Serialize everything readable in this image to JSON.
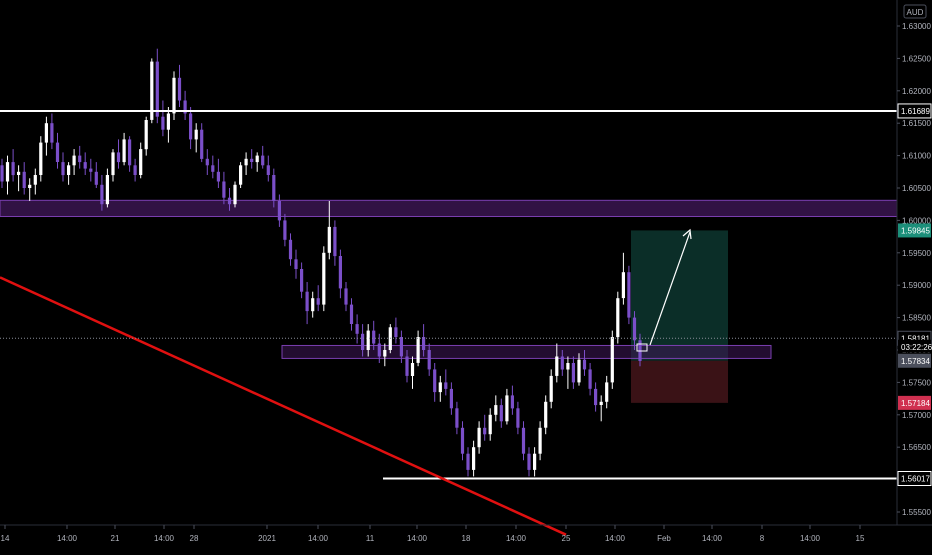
{
  "currency_label": "AUD",
  "colors": {
    "background": "#000000",
    "bull_candle": "#ffffff",
    "bear_candle": "#7b4fc9",
    "zone_fill": "#3a1550",
    "zone_stroke": "#7a3fb0",
    "trendline": "#e01010",
    "level_line": "#ffffff",
    "profit_fill": "#0b2e28",
    "loss_fill": "#3a1216",
    "target_badge": "#1c8f7a",
    "stop_badge": "#d03050",
    "current_badge": "#4b4f5c",
    "axis_text": "#b2b5be"
  },
  "chart_data": {
    "type": "candlestick",
    "title": "",
    "xlabel": "",
    "ylabel": "",
    "ylim": [
      1.5525,
      1.6325
    ],
    "grid": false,
    "y_ticks": [
      "1.63000",
      "1.62500",
      "1.62000",
      "1.61500",
      "1.61000",
      "1.60500",
      "1.60000",
      "1.59500",
      "1.59000",
      "1.58500",
      "1.58000",
      "1.57500",
      "1.57000",
      "1.56500",
      "1.56000",
      "1.55500"
    ],
    "x_ticks": [
      "14",
      "14:00",
      "21",
      "14:00",
      "28",
      "2021",
      "14:00",
      "11",
      "14:00",
      "18",
      "14:00",
      "25",
      "14:00",
      "Feb",
      "14:00",
      "8",
      "14:00",
      "15"
    ],
    "horizontal_levels": [
      1.61689,
      1.56017
    ],
    "zones": [
      {
        "top": 1.6031,
        "bottom": 1.6006
      },
      {
        "top": 1.5807,
        "bottom": 1.5787
      }
    ],
    "trendline": {
      "start_price": 1.5912,
      "end_price": 1.5515
    },
    "position": {
      "entry": 1.57834,
      "target": 1.59845,
      "stop": 1.57184
    },
    "price_labels": {
      "level_high": "1.61689",
      "target": "1.59845",
      "last_close": "1.58181",
      "countdown": "03:22:26",
      "current": "1.57834",
      "stop": "1.57184",
      "level_low": "1.56017"
    },
    "candles": [
      {
        "o": 1.6085,
        "h": 1.6095,
        "l": 1.605,
        "c": 1.606
      },
      {
        "o": 1.606,
        "h": 1.61,
        "l": 1.604,
        "c": 1.609
      },
      {
        "o": 1.609,
        "h": 1.611,
        "l": 1.606,
        "c": 1.607
      },
      {
        "o": 1.607,
        "h": 1.6085,
        "l": 1.6045,
        "c": 1.6075
      },
      {
        "o": 1.6075,
        "h": 1.609,
        "l": 1.604,
        "c": 1.605
      },
      {
        "o": 1.605,
        "h": 1.6065,
        "l": 1.603,
        "c": 1.6055
      },
      {
        "o": 1.6055,
        "h": 1.608,
        "l": 1.604,
        "c": 1.607
      },
      {
        "o": 1.607,
        "h": 1.613,
        "l": 1.606,
        "c": 1.612
      },
      {
        "o": 1.612,
        "h": 1.616,
        "l": 1.61,
        "c": 1.615
      },
      {
        "o": 1.615,
        "h": 1.6165,
        "l": 1.611,
        "c": 1.612
      },
      {
        "o": 1.612,
        "h": 1.6135,
        "l": 1.608,
        "c": 1.609
      },
      {
        "o": 1.609,
        "h": 1.6105,
        "l": 1.606,
        "c": 1.607
      },
      {
        "o": 1.607,
        "h": 1.609,
        "l": 1.6055,
        "c": 1.6085
      },
      {
        "o": 1.6085,
        "h": 1.611,
        "l": 1.607,
        "c": 1.61
      },
      {
        "o": 1.61,
        "h": 1.6115,
        "l": 1.608,
        "c": 1.609
      },
      {
        "o": 1.609,
        "h": 1.6105,
        "l": 1.607,
        "c": 1.608
      },
      {
        "o": 1.608,
        "h": 1.6095,
        "l": 1.606,
        "c": 1.6075
      },
      {
        "o": 1.6075,
        "h": 1.609,
        "l": 1.605,
        "c": 1.6055
      },
      {
        "o": 1.6055,
        "h": 1.607,
        "l": 1.6015,
        "c": 1.6025
      },
      {
        "o": 1.6025,
        "h": 1.608,
        "l": 1.602,
        "c": 1.607
      },
      {
        "o": 1.607,
        "h": 1.611,
        "l": 1.606,
        "c": 1.6105
      },
      {
        "o": 1.6105,
        "h": 1.6125,
        "l": 1.608,
        "c": 1.609
      },
      {
        "o": 1.609,
        "h": 1.6135,
        "l": 1.6085,
        "c": 1.6125
      },
      {
        "o": 1.6125,
        "h": 1.613,
        "l": 1.6075,
        "c": 1.6085
      },
      {
        "o": 1.6085,
        "h": 1.6095,
        "l": 1.606,
        "c": 1.607
      },
      {
        "o": 1.607,
        "h": 1.612,
        "l": 1.6065,
        "c": 1.611
      },
      {
        "o": 1.611,
        "h": 1.616,
        "l": 1.61,
        "c": 1.6155
      },
      {
        "o": 1.6155,
        "h": 1.625,
        "l": 1.615,
        "c": 1.6245
      },
      {
        "o": 1.6245,
        "h": 1.6265,
        "l": 1.615,
        "c": 1.616
      },
      {
        "o": 1.616,
        "h": 1.6185,
        "l": 1.613,
        "c": 1.614
      },
      {
        "o": 1.614,
        "h": 1.6175,
        "l": 1.612,
        "c": 1.6165
      },
      {
        "o": 1.6165,
        "h": 1.623,
        "l": 1.6155,
        "c": 1.622
      },
      {
        "o": 1.622,
        "h": 1.624,
        "l": 1.6175,
        "c": 1.6185
      },
      {
        "o": 1.6185,
        "h": 1.62,
        "l": 1.6155,
        "c": 1.6165
      },
      {
        "o": 1.6165,
        "h": 1.6175,
        "l": 1.611,
        "c": 1.6125
      },
      {
        "o": 1.6125,
        "h": 1.615,
        "l": 1.6105,
        "c": 1.614
      },
      {
        "o": 1.614,
        "h": 1.615,
        "l": 1.609,
        "c": 1.6095
      },
      {
        "o": 1.6095,
        "h": 1.611,
        "l": 1.607,
        "c": 1.6085
      },
      {
        "o": 1.6085,
        "h": 1.61,
        "l": 1.6065,
        "c": 1.6075
      },
      {
        "o": 1.6075,
        "h": 1.6095,
        "l": 1.605,
        "c": 1.606
      },
      {
        "o": 1.606,
        "h": 1.6075,
        "l": 1.6025,
        "c": 1.6035
      },
      {
        "o": 1.6035,
        "h": 1.605,
        "l": 1.6015,
        "c": 1.6025
      },
      {
        "o": 1.6025,
        "h": 1.606,
        "l": 1.602,
        "c": 1.6055
      },
      {
        "o": 1.6055,
        "h": 1.609,
        "l": 1.605,
        "c": 1.6085
      },
      {
        "o": 1.6085,
        "h": 1.6105,
        "l": 1.607,
        "c": 1.6095
      },
      {
        "o": 1.6095,
        "h": 1.611,
        "l": 1.608,
        "c": 1.609
      },
      {
        "o": 1.609,
        "h": 1.6105,
        "l": 1.6075,
        "c": 1.61
      },
      {
        "o": 1.61,
        "h": 1.6115,
        "l": 1.608,
        "c": 1.6085
      },
      {
        "o": 1.6085,
        "h": 1.61,
        "l": 1.606,
        "c": 1.607
      },
      {
        "o": 1.607,
        "h": 1.608,
        "l": 1.602,
        "c": 1.603
      },
      {
        "o": 1.603,
        "h": 1.604,
        "l": 1.599,
        "c": 1.6
      },
      {
        "o": 1.6,
        "h": 1.601,
        "l": 1.596,
        "c": 1.597
      },
      {
        "o": 1.597,
        "h": 1.598,
        "l": 1.593,
        "c": 1.594
      },
      {
        "o": 1.594,
        "h": 1.5955,
        "l": 1.591,
        "c": 1.5925
      },
      {
        "o": 1.5925,
        "h": 1.5935,
        "l": 1.588,
        "c": 1.589
      },
      {
        "o": 1.589,
        "h": 1.5905,
        "l": 1.584,
        "c": 1.586
      },
      {
        "o": 1.586,
        "h": 1.589,
        "l": 1.585,
        "c": 1.588
      },
      {
        "o": 1.588,
        "h": 1.59,
        "l": 1.586,
        "c": 1.587
      },
      {
        "o": 1.587,
        "h": 1.596,
        "l": 1.586,
        "c": 1.595
      },
      {
        "o": 1.595,
        "h": 1.603,
        "l": 1.594,
        "c": 1.599
      },
      {
        "o": 1.599,
        "h": 1.6,
        "l": 1.593,
        "c": 1.5945
      },
      {
        "o": 1.5945,
        "h": 1.5955,
        "l": 1.588,
        "c": 1.5895
      },
      {
        "o": 1.5895,
        "h": 1.5905,
        "l": 1.586,
        "c": 1.587
      },
      {
        "o": 1.587,
        "h": 1.588,
        "l": 1.583,
        "c": 1.584
      },
      {
        "o": 1.584,
        "h": 1.5855,
        "l": 1.581,
        "c": 1.5825
      },
      {
        "o": 1.5825,
        "h": 1.584,
        "l": 1.579,
        "c": 1.58
      },
      {
        "o": 1.58,
        "h": 1.584,
        "l": 1.579,
        "c": 1.583
      },
      {
        "o": 1.583,
        "h": 1.5845,
        "l": 1.58,
        "c": 1.581
      },
      {
        "o": 1.581,
        "h": 1.5825,
        "l": 1.578,
        "c": 1.579
      },
      {
        "o": 1.579,
        "h": 1.581,
        "l": 1.5775,
        "c": 1.58
      },
      {
        "o": 1.58,
        "h": 1.584,
        "l": 1.5795,
        "c": 1.5835
      },
      {
        "o": 1.5835,
        "h": 1.585,
        "l": 1.581,
        "c": 1.582
      },
      {
        "o": 1.582,
        "h": 1.583,
        "l": 1.578,
        "c": 1.579
      },
      {
        "o": 1.579,
        "h": 1.58,
        "l": 1.575,
        "c": 1.576
      },
      {
        "o": 1.576,
        "h": 1.579,
        "l": 1.574,
        "c": 1.578
      },
      {
        "o": 1.578,
        "h": 1.583,
        "l": 1.5775,
        "c": 1.582
      },
      {
        "o": 1.582,
        "h": 1.584,
        "l": 1.579,
        "c": 1.58
      },
      {
        "o": 1.58,
        "h": 1.581,
        "l": 1.576,
        "c": 1.577
      },
      {
        "o": 1.577,
        "h": 1.578,
        "l": 1.572,
        "c": 1.5735
      },
      {
        "o": 1.5735,
        "h": 1.576,
        "l": 1.572,
        "c": 1.575
      },
      {
        "o": 1.575,
        "h": 1.577,
        "l": 1.573,
        "c": 1.574
      },
      {
        "o": 1.574,
        "h": 1.575,
        "l": 1.57,
        "c": 1.571
      },
      {
        "o": 1.571,
        "h": 1.572,
        "l": 1.567,
        "c": 1.568
      },
      {
        "o": 1.568,
        "h": 1.569,
        "l": 1.563,
        "c": 1.564
      },
      {
        "o": 1.564,
        "h": 1.565,
        "l": 1.5605,
        "c": 1.5615
      },
      {
        "o": 1.5615,
        "h": 1.566,
        "l": 1.5605,
        "c": 1.565
      },
      {
        "o": 1.565,
        "h": 1.569,
        "l": 1.564,
        "c": 1.568
      },
      {
        "o": 1.568,
        "h": 1.57,
        "l": 1.566,
        "c": 1.567
      },
      {
        "o": 1.567,
        "h": 1.571,
        "l": 1.566,
        "c": 1.57
      },
      {
        "o": 1.57,
        "h": 1.573,
        "l": 1.569,
        "c": 1.5715
      },
      {
        "o": 1.5715,
        "h": 1.5725,
        "l": 1.568,
        "c": 1.569
      },
      {
        "o": 1.569,
        "h": 1.574,
        "l": 1.5685,
        "c": 1.573
      },
      {
        "o": 1.573,
        "h": 1.5745,
        "l": 1.57,
        "c": 1.571
      },
      {
        "o": 1.571,
        "h": 1.572,
        "l": 1.567,
        "c": 1.568
      },
      {
        "o": 1.568,
        "h": 1.569,
        "l": 1.563,
        "c": 1.564
      },
      {
        "o": 1.564,
        "h": 1.565,
        "l": 1.5605,
        "c": 1.5615
      },
      {
        "o": 1.5615,
        "h": 1.565,
        "l": 1.5605,
        "c": 1.564
      },
      {
        "o": 1.564,
        "h": 1.569,
        "l": 1.563,
        "c": 1.568
      },
      {
        "o": 1.568,
        "h": 1.573,
        "l": 1.567,
        "c": 1.572
      },
      {
        "o": 1.572,
        "h": 1.577,
        "l": 1.571,
        "c": 1.576
      },
      {
        "o": 1.576,
        "h": 1.581,
        "l": 1.575,
        "c": 1.579
      },
      {
        "o": 1.579,
        "h": 1.58,
        "l": 1.576,
        "c": 1.577
      },
      {
        "o": 1.577,
        "h": 1.579,
        "l": 1.574,
        "c": 1.578
      },
      {
        "o": 1.578,
        "h": 1.579,
        "l": 1.574,
        "c": 1.575
      },
      {
        "o": 1.575,
        "h": 1.5795,
        "l": 1.5745,
        "c": 1.5785
      },
      {
        "o": 1.5785,
        "h": 1.58,
        "l": 1.576,
        "c": 1.577
      },
      {
        "o": 1.577,
        "h": 1.578,
        "l": 1.573,
        "c": 1.574
      },
      {
        "o": 1.574,
        "h": 1.575,
        "l": 1.5705,
        "c": 1.5715
      },
      {
        "o": 1.5715,
        "h": 1.573,
        "l": 1.569,
        "c": 1.572
      },
      {
        "o": 1.572,
        "h": 1.576,
        "l": 1.571,
        "c": 1.575
      },
      {
        "o": 1.575,
        "h": 1.583,
        "l": 1.574,
        "c": 1.582
      },
      {
        "o": 1.582,
        "h": 1.589,
        "l": 1.581,
        "c": 1.588
      },
      {
        "o": 1.588,
        "h": 1.595,
        "l": 1.587,
        "c": 1.592
      },
      {
        "o": 1.592,
        "h": 1.593,
        "l": 1.584,
        "c": 1.585
      },
      {
        "o": 1.585,
        "h": 1.586,
        "l": 1.58,
        "c": 1.5815
      },
      {
        "o": 1.5815,
        "h": 1.5825,
        "l": 1.5775,
        "c": 1.5783
      }
    ]
  }
}
